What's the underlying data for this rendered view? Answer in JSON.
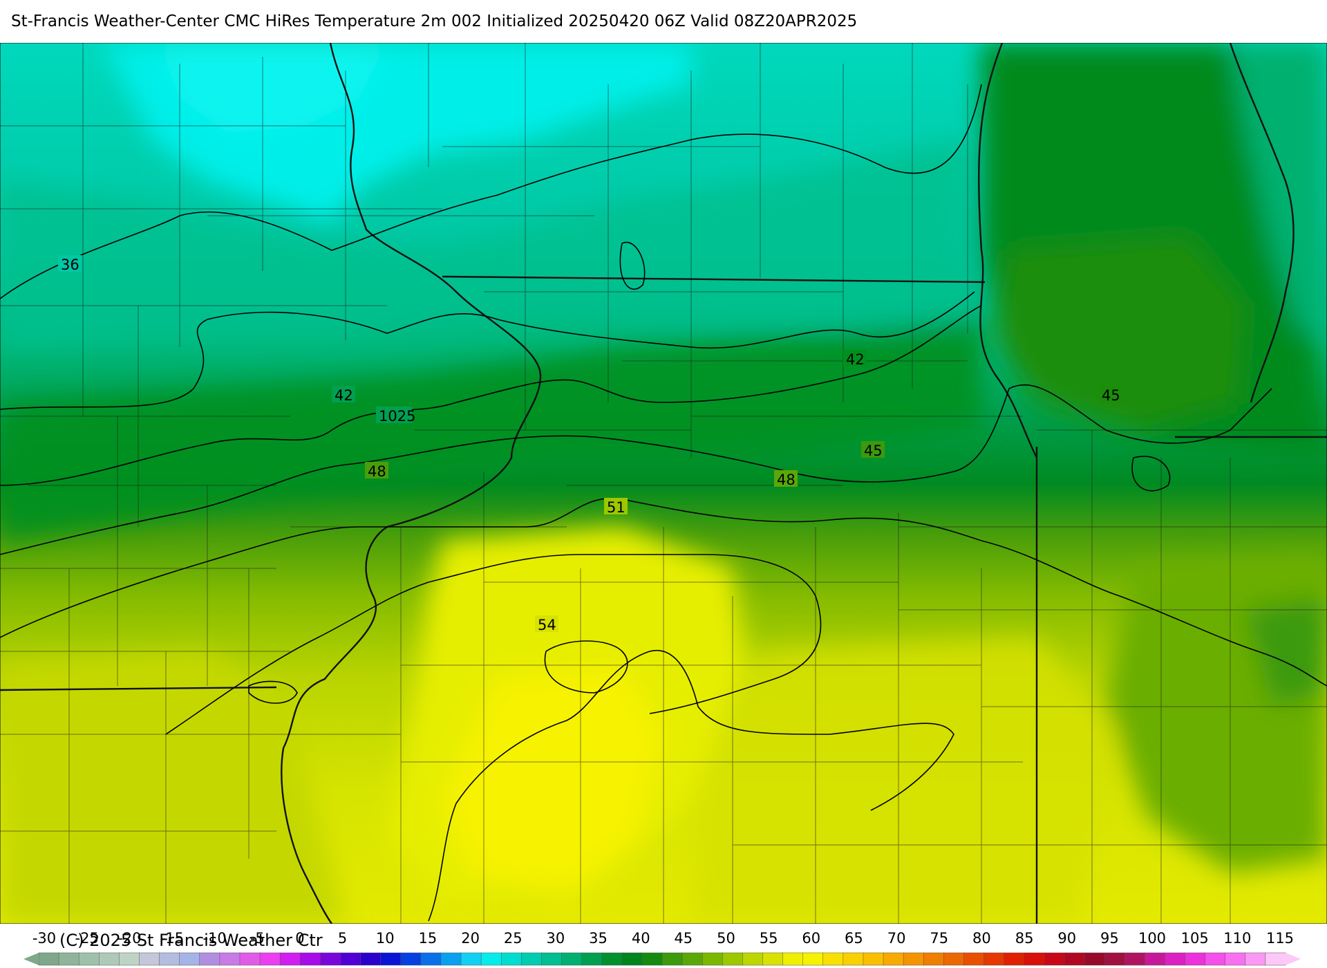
{
  "header": {
    "title": "St-Francis Weather-Center CMC HiRes Temperature 2m  002 Initialized 20250420 06Z Valid 08Z20APR2025"
  },
  "map": {
    "contour_labels": [
      "36",
      "42",
      "1025",
      "48",
      "51",
      "54",
      "42",
      "45",
      "45",
      "48"
    ]
  },
  "colorbar": {
    "ticks": [
      "-30",
      "-25",
      "-20",
      "-15",
      "-10",
      "-5",
      "0",
      "5",
      "10",
      "15",
      "20",
      "25",
      "30",
      "35",
      "40",
      "45",
      "50",
      "55",
      "60",
      "65",
      "70",
      "75",
      "80",
      "85",
      "90",
      "95",
      "100",
      "105",
      "110",
      "115"
    ],
    "colors": [
      "#7fa88a",
      "#8fb49a",
      "#9fc0aa",
      "#afc9b8",
      "#bfd2c6",
      "#c3c7d9",
      "#b4bde0",
      "#a5b4e6",
      "#b08fe0",
      "#c87ae6",
      "#e05ce8",
      "#ec3ef0",
      "#d01fee",
      "#a80ce8",
      "#7a06dc",
      "#5000d4",
      "#2a00cc",
      "#0a14d6",
      "#0640e0",
      "#0a70e8",
      "#0aa0f0",
      "#10d0f4",
      "#06ecea",
      "#00ddd0",
      "#00ccb0",
      "#00bf90",
      "#00b070",
      "#00a050",
      "#009030",
      "#00841c",
      "#148a10",
      "#3c9a0c",
      "#5aa808",
      "#7ab800",
      "#9cc800",
      "#bcd600",
      "#d8e200",
      "#eef000",
      "#f6f200",
      "#fae000",
      "#fad000",
      "#fac000",
      "#f8aa00",
      "#f49400",
      "#f07e00",
      "#ec6800",
      "#e85000",
      "#e43800",
      "#e02000",
      "#d81008",
      "#c80818",
      "#b00822",
      "#980a2a",
      "#a01040",
      "#b01460",
      "#c8189a",
      "#dc20c4",
      "#ec30dc",
      "#f450ea",
      "#f870f0",
      "#fa98f4",
      "#fcc8f8"
    ],
    "copyright": "(C) 2025 St Francis Weather Ctr"
  }
}
